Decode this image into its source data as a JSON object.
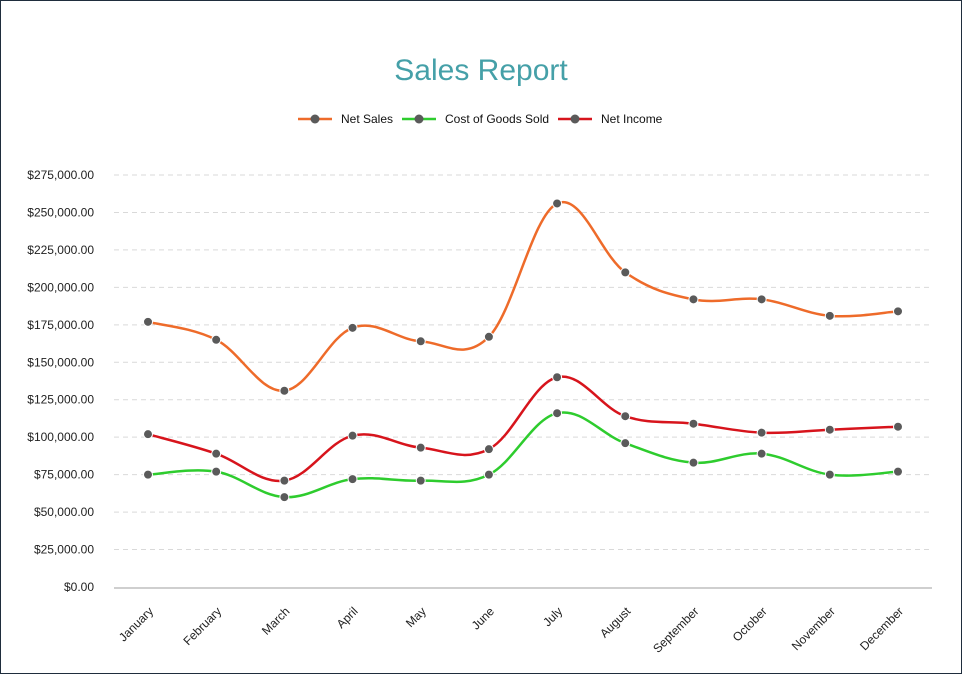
{
  "chart_data": {
    "type": "line",
    "title": "Sales Report",
    "xlabel": "",
    "ylabel": "",
    "ylim": [
      0,
      275000
    ],
    "yticks": [
      0,
      25000,
      50000,
      75000,
      100000,
      125000,
      150000,
      175000,
      200000,
      225000,
      250000,
      275000
    ],
    "ytick_labels": [
      "$0.00",
      "$25,000.00",
      "$50,000.00",
      "$75,000.00",
      "$100,000.00",
      "$125,000.00",
      "$150,000.00",
      "$175,000.00",
      "$200,000.00",
      "$225,000.00",
      "$250,000.00",
      "$275,000.00"
    ],
    "categories": [
      "January",
      "February",
      "March",
      "April",
      "May",
      "June",
      "July",
      "August",
      "September",
      "October",
      "November",
      "December"
    ],
    "grid": true,
    "legend_position": "top-center",
    "series": [
      {
        "name": "Net Sales",
        "color": "#ee6b2a",
        "values": [
          177000,
          165000,
          131000,
          173000,
          164000,
          167000,
          256000,
          210000,
          192000,
          192000,
          181000,
          184000
        ]
      },
      {
        "name": "Cost of Goods Sold",
        "color": "#2ecc2e",
        "values": [
          75000,
          77000,
          60000,
          72000,
          71000,
          75000,
          116000,
          96000,
          83000,
          89000,
          75000,
          77000
        ]
      },
      {
        "name": "Net Income",
        "color": "#d7141c",
        "values": [
          102000,
          89000,
          71000,
          101000,
          93000,
          92000,
          140000,
          114000,
          109000,
          103000,
          105000,
          107000
        ]
      }
    ],
    "marker_color": "#5a5a5a"
  }
}
